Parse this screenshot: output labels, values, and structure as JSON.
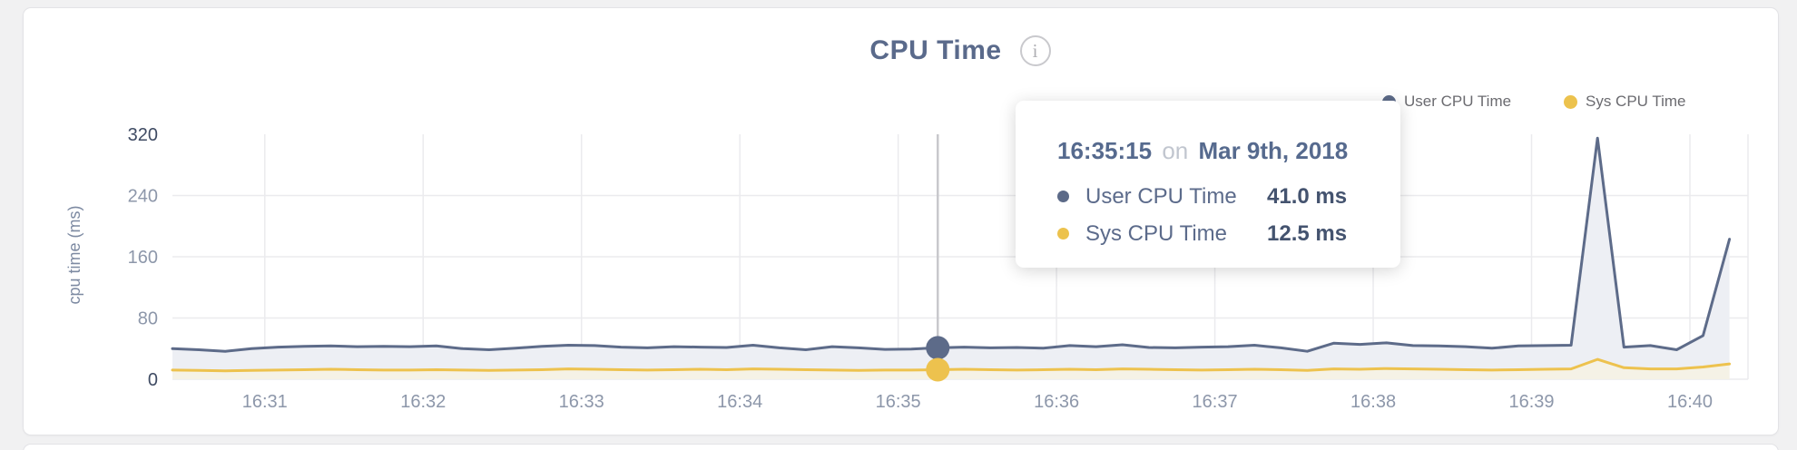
{
  "card": {
    "title": "CPU Time",
    "info_glyph": "i"
  },
  "legend": [
    {
      "label": "User CPU Time",
      "color": "#5c6a88"
    },
    {
      "label": "Sys CPU Time",
      "color": "#ecc24d"
    }
  ],
  "tooltip": {
    "time": "16:35:15",
    "conjunction": "on",
    "date": "Mar 9th, 2018",
    "rows": [
      {
        "label": "User CPU Time",
        "value": "41.0 ms",
        "color": "#5c6a88"
      },
      {
        "label": "Sys CPU Time",
        "value": "12.5 ms",
        "color": "#ecc24d"
      }
    ]
  },
  "colors": {
    "user_line": "#5d6b89",
    "user_fill": "#edeff4",
    "sys_line": "#edc24e",
    "sys_fill": "#f5f2e6",
    "grid": "#ebebee",
    "hover_line": "#c8c8cc",
    "tick_text": "#8d97aa",
    "tick_text_emphasis": "#3f4b63",
    "axis_title": "#7d8aa2"
  },
  "chart_data": {
    "type": "area",
    "title": "CPU Time",
    "xlabel": "",
    "ylabel": "cpu time (ms)",
    "ylim": [
      0,
      320
    ],
    "yticks": [
      0,
      80,
      160,
      240,
      320
    ],
    "xticks": [
      "16:31",
      "16:32",
      "16:33",
      "16:34",
      "16:35",
      "16:36",
      "16:37",
      "16:38",
      "16:39",
      "16:40"
    ],
    "grid": true,
    "legend_position": "top-right",
    "x": [
      "16:30:25",
      "16:30:35",
      "16:30:45",
      "16:30:55",
      "16:31:05",
      "16:31:15",
      "16:31:25",
      "16:31:35",
      "16:31:45",
      "16:31:55",
      "16:32:05",
      "16:32:15",
      "16:32:25",
      "16:32:35",
      "16:32:45",
      "16:32:55",
      "16:33:05",
      "16:33:15",
      "16:33:25",
      "16:33:35",
      "16:33:45",
      "16:33:55",
      "16:34:05",
      "16:34:15",
      "16:34:25",
      "16:34:35",
      "16:34:45",
      "16:34:55",
      "16:35:05",
      "16:35:15",
      "16:35:25",
      "16:35:35",
      "16:35:45",
      "16:35:55",
      "16:36:05",
      "16:36:15",
      "16:36:25",
      "16:36:35",
      "16:36:45",
      "16:36:55",
      "16:37:05",
      "16:37:15",
      "16:37:25",
      "16:37:35",
      "16:37:45",
      "16:37:55",
      "16:38:05",
      "16:38:15",
      "16:38:25",
      "16:38:35",
      "16:38:45",
      "16:38:55",
      "16:39:05",
      "16:39:15",
      "16:39:25",
      "16:39:35",
      "16:39:45",
      "16:39:55",
      "16:40:05",
      "16:40:15"
    ],
    "series": [
      {
        "name": "User CPU Time",
        "color": "#5d6b89",
        "fill": "#edeff4",
        "unit": "ms",
        "values": [
          40,
          38.5,
          36.5,
          40,
          42,
          43,
          43.5,
          42.5,
          43,
          42.5,
          43.5,
          40,
          38.5,
          40.5,
          43,
          44.5,
          44,
          42,
          41,
          42.5,
          42,
          41.5,
          44.5,
          41,
          38.5,
          42.5,
          41,
          39,
          39.5,
          41,
          42,
          41,
          41.5,
          40.5,
          44,
          42.5,
          45,
          41.5,
          41,
          42,
          42.5,
          44.5,
          41,
          36.5,
          47,
          45.5,
          47.5,
          44,
          43.5,
          42.5,
          40.5,
          43.5,
          44,
          44.5,
          315,
          42,
          44,
          38.5,
          57,
          183
        ]
      },
      {
        "name": "Sys CPU Time",
        "color": "#edc24e",
        "fill": "#f5f2e6",
        "unit": "ms",
        "values": [
          12,
          11.5,
          11,
          11.5,
          12,
          12.5,
          13,
          12.5,
          12,
          12,
          12.5,
          12,
          11.5,
          12,
          12.5,
          13.5,
          13,
          12.5,
          12,
          12.5,
          13,
          12.5,
          13.5,
          13,
          12.5,
          12,
          11.5,
          12,
          12,
          12.5,
          13,
          12.5,
          12,
          12.5,
          13,
          12.5,
          13.5,
          13,
          12.5,
          12,
          12.5,
          13,
          12.5,
          11.5,
          13.5,
          13,
          14,
          13.5,
          13,
          12.5,
          12,
          12.5,
          13,
          13.5,
          26,
          15,
          13.5,
          13.5,
          16,
          20
        ]
      }
    ],
    "highlight": {
      "index": 29,
      "time": "16:35:15",
      "user_value_ms": 41.0,
      "sys_value_ms": 12.5
    }
  }
}
